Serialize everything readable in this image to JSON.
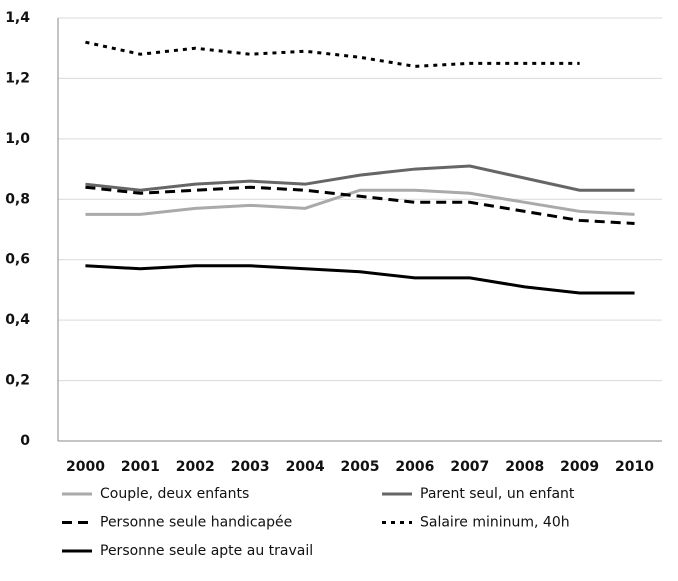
{
  "chart_data": {
    "type": "line",
    "categories": [
      "2000",
      "2001",
      "2002",
      "2003",
      "2004",
      "2005",
      "2006",
      "2007",
      "2008",
      "2009",
      "2010"
    ],
    "ylim": [
      0,
      1.4
    ],
    "yticks": [
      {
        "value": 0,
        "label": "0"
      },
      {
        "value": 0.2,
        "label": "0,2"
      },
      {
        "value": 0.4,
        "label": "0,4"
      },
      {
        "value": 0.6,
        "label": "0,6"
      },
      {
        "value": 0.8,
        "label": "0,8"
      },
      {
        "value": 1.0,
        "label": "1,0"
      },
      {
        "value": 1.2,
        "label": "1,2"
      },
      {
        "value": 1.4,
        "label": "1,4"
      }
    ],
    "grid": true,
    "series": [
      {
        "name": "Couple, deux enfants",
        "color": "#aaaaaa",
        "dash": "solid",
        "values": [
          0.75,
          0.75,
          0.77,
          0.78,
          0.77,
          0.83,
          0.83,
          0.82,
          0.79,
          0.76,
          0.75
        ]
      },
      {
        "name": "Parent seul, un enfant",
        "color": "#666666",
        "dash": "solid",
        "values": [
          0.85,
          0.83,
          0.85,
          0.86,
          0.85,
          0.88,
          0.9,
          0.91,
          0.87,
          0.83,
          0.83
        ]
      },
      {
        "name": "Personne seule handicapée",
        "color": "#000000",
        "dash": "dashed",
        "values": [
          0.84,
          0.82,
          0.83,
          0.84,
          0.83,
          0.81,
          0.79,
          0.79,
          0.76,
          0.73,
          0.72
        ]
      },
      {
        "name": "Salaire mininum, 40h",
        "color": "#000000",
        "dash": "dotted",
        "values": [
          1.32,
          1.28,
          1.3,
          1.28,
          1.29,
          1.27,
          1.24,
          1.25,
          1.25,
          1.25,
          null
        ]
      },
      {
        "name": "Personne seule apte au travail",
        "color": "#000000",
        "dash": "solid",
        "values": [
          0.58,
          0.57,
          0.58,
          0.58,
          0.57,
          0.56,
          0.54,
          0.54,
          0.51,
          0.49,
          0.49
        ]
      }
    ]
  }
}
